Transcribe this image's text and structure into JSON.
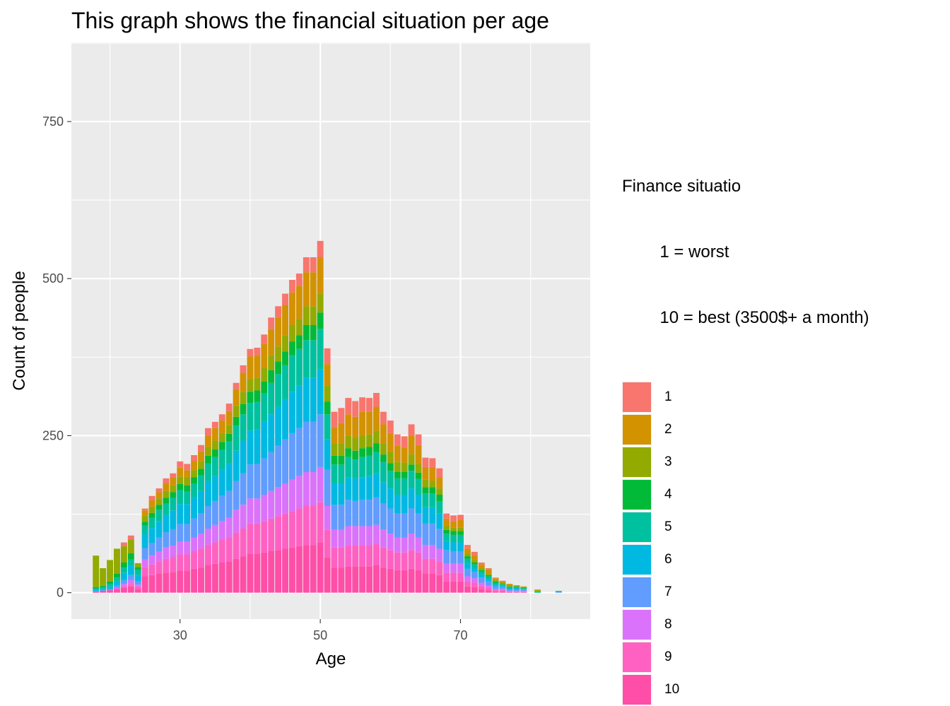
{
  "chart_data": {
    "type": "bar",
    "stacked": true,
    "title": "This graph shows the financial situation per age",
    "xlabel": "Age",
    "ylabel": "Count of people",
    "xlim": [
      14.5,
      88.5
    ],
    "ylim": [
      -42,
      876
    ],
    "xticks": [
      30,
      50,
      70
    ],
    "yticks": [
      0,
      250,
      500,
      750
    ],
    "grid": true,
    "legend": {
      "title_lines": [
        "Finance situatio",
        "        1 = worst",
        "        10 = best (3500$+ a month)"
      ],
      "position": "right"
    },
    "x": [
      18,
      19,
      20,
      21,
      22,
      23,
      24,
      25,
      26,
      27,
      28,
      29,
      30,
      31,
      32,
      33,
      34,
      35,
      36,
      37,
      38,
      39,
      40,
      41,
      42,
      43,
      44,
      45,
      46,
      47,
      48,
      49,
      50,
      51,
      52,
      53,
      54,
      55,
      56,
      57,
      58,
      59,
      60,
      61,
      62,
      63,
      64,
      65,
      66,
      67,
      68,
      69,
      70,
      71,
      72,
      73,
      74,
      75,
      76,
      77,
      78,
      79,
      81,
      84
    ],
    "series": [
      {
        "name": "1",
        "color": "#F8766D",
        "values": [
          0,
          0,
          0,
          0,
          6,
          6,
          0,
          3,
          7,
          6,
          8,
          7,
          10,
          10,
          9,
          10,
          12,
          10,
          10,
          12,
          10,
          12,
          12,
          12,
          15,
          18,
          18,
          18,
          20,
          20,
          24,
          24,
          26,
          25,
          25,
          24,
          26,
          25,
          23,
          22,
          22,
          20,
          20,
          18,
          18,
          18,
          17,
          15,
          14,
          14,
          8,
          9,
          8,
          6,
          5,
          3,
          2,
          1,
          1,
          0,
          0,
          0,
          0,
          0
        ]
      },
      {
        "name": "2",
        "color": "#D39200",
        "values": [
          0,
          0,
          0,
          0,
          0,
          0,
          0,
          8,
          10,
          10,
          12,
          12,
          14,
          12,
          15,
          16,
          18,
          20,
          20,
          22,
          26,
          30,
          36,
          36,
          38,
          42,
          46,
          48,
          52,
          52,
          54,
          54,
          58,
          34,
          25,
          32,
          34,
          34,
          38,
          36,
          38,
          30,
          30,
          26,
          24,
          30,
          30,
          20,
          22,
          18,
          12,
          10,
          12,
          8,
          8,
          6,
          6,
          3,
          2,
          2,
          1,
          1,
          1,
          0
        ]
      },
      {
        "name": "3",
        "color": "#93AA00",
        "values": [
          50,
          28,
          34,
          40,
          26,
          22,
          6,
          10,
          10,
          10,
          11,
          11,
          12,
          12,
          11,
          12,
          14,
          14,
          14,
          14,
          18,
          20,
          20,
          20,
          22,
          24,
          24,
          26,
          26,
          26,
          30,
          30,
          30,
          26,
          20,
          20,
          20,
          20,
          20,
          20,
          20,
          18,
          18,
          16,
          15,
          16,
          14,
          12,
          10,
          10,
          6,
          6,
          6,
          4,
          4,
          3,
          3,
          2,
          2,
          2,
          1,
          1,
          2,
          0
        ]
      },
      {
        "name": "4",
        "color": "#00BA38",
        "values": [
          2,
          2,
          4,
          6,
          8,
          10,
          5,
          6,
          8,
          8,
          9,
          9,
          10,
          10,
          10,
          10,
          12,
          12,
          12,
          12,
          14,
          16,
          18,
          18,
          18,
          20,
          20,
          22,
          22,
          22,
          24,
          24,
          26,
          20,
          14,
          14,
          14,
          14,
          14,
          14,
          14,
          12,
          12,
          10,
          10,
          10,
          10,
          10,
          10,
          10,
          6,
          6,
          6,
          4,
          3,
          2,
          2,
          2,
          1,
          1,
          1,
          1,
          1,
          0
        ]
      },
      {
        "name": "5",
        "color": "#00C19F",
        "values": [
          2,
          3,
          4,
          6,
          8,
          10,
          8,
          14,
          16,
          18,
          18,
          20,
          22,
          20,
          22,
          25,
          28,
          30,
          32,
          35,
          40,
          42,
          44,
          44,
          46,
          50,
          52,
          54,
          58,
          58,
          60,
          60,
          64,
          40,
          30,
          30,
          32,
          30,
          32,
          32,
          34,
          32,
          28,
          26,
          26,
          28,
          25,
          22,
          22,
          20,
          12,
          12,
          12,
          8,
          6,
          5,
          4,
          3,
          2,
          2,
          2,
          1,
          1,
          1
        ]
      },
      {
        "name": "6",
        "color": "#00B9E3",
        "values": [
          2,
          2,
          4,
          6,
          12,
          15,
          10,
          22,
          24,
          26,
          28,
          30,
          32,
          32,
          34,
          36,
          40,
          40,
          42,
          44,
          48,
          52,
          54,
          55,
          58,
          60,
          62,
          64,
          66,
          68,
          70,
          70,
          72,
          48,
          34,
          34,
          36,
          36,
          36,
          38,
          38,
          34,
          32,
          30,
          30,
          32,
          30,
          26,
          26,
          24,
          14,
          14,
          14,
          8,
          6,
          5,
          4,
          3,
          2,
          2,
          2,
          1,
          0,
          1
        ]
      },
      {
        "name": "7",
        "color": "#619CFF",
        "values": [
          1,
          1,
          2,
          4,
          6,
          8,
          5,
          18,
          20,
          22,
          24,
          26,
          28,
          28,
          30,
          32,
          36,
          38,
          40,
          42,
          46,
          50,
          54,
          55,
          58,
          62,
          66,
          70,
          74,
          76,
          80,
          80,
          84,
          58,
          40,
          40,
          42,
          40,
          42,
          42,
          44,
          42,
          40,
          38,
          38,
          40,
          38,
          34,
          34,
          32,
          22,
          20,
          20,
          12,
          10,
          8,
          6,
          4,
          3,
          2,
          2,
          2,
          0,
          1
        ]
      },
      {
        "name": "8",
        "color": "#DB72FB",
        "values": [
          0,
          0,
          0,
          2,
          4,
          6,
          3,
          12,
          14,
          16,
          18,
          18,
          20,
          20,
          22,
          24,
          26,
          28,
          30,
          32,
          36,
          38,
          40,
          40,
          42,
          44,
          46,
          48,
          50,
          52,
          54,
          54,
          56,
          38,
          28,
          28,
          30,
          30,
          30,
          30,
          30,
          28,
          26,
          24,
          24,
          26,
          24,
          22,
          22,
          20,
          14,
          14,
          14,
          8,
          7,
          5,
          4,
          2,
          2,
          1,
          1,
          1,
          0,
          0
        ]
      },
      {
        "name": "9",
        "color": "#FF61C3",
        "values": [
          0,
          0,
          0,
          0,
          2,
          4,
          4,
          15,
          17,
          20,
          22,
          24,
          26,
          26,
          28,
          30,
          32,
          34,
          36,
          38,
          42,
          44,
          48,
          48,
          50,
          52,
          54,
          56,
          58,
          60,
          62,
          62,
          64,
          44,
          32,
          32,
          34,
          34,
          34,
          34,
          34,
          32,
          30,
          28,
          28,
          30,
          28,
          24,
          24,
          22,
          14,
          14,
          14,
          8,
          7,
          5,
          4,
          2,
          2,
          1,
          1,
          1,
          0,
          0
        ]
      },
      {
        "name": "10",
        "color": "#FF4EA7",
        "values": [
          2,
          3,
          4,
          6,
          8,
          10,
          6,
          26,
          28,
          30,
          32,
          33,
          35,
          35,
          38,
          40,
          44,
          46,
          48,
          50,
          54,
          58,
          62,
          62,
          64,
          66,
          68,
          70,
          72,
          74,
          76,
          76,
          80,
          56,
          40,
          40,
          42,
          42,
          42,
          42,
          44,
          40,
          38,
          36,
          36,
          38,
          36,
          30,
          30,
          28,
          18,
          18,
          18,
          10,
          9,
          6,
          4,
          2,
          2,
          1,
          1,
          1,
          0,
          0
        ]
      }
    ]
  }
}
